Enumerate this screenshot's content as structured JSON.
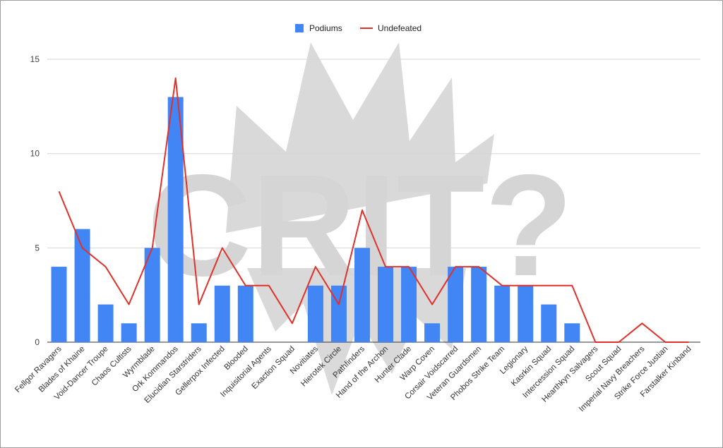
{
  "chart_data": {
    "type": "bar",
    "categories": [
      "Fellgor Ravagers",
      "Blades of Khaine",
      "Void-Dancer Troupe",
      "Chaos Cultists",
      "Wyrmblade",
      "Ork Kommandos",
      "Elucidian Starstriders",
      "Gellerpox Infected",
      "Blooded",
      "Inquisitorial Agents",
      "Exaction Squad",
      "Novitiates",
      "Hierotek Circle",
      "Pathfinders",
      "Hand of the Archon",
      "Hunter Clade",
      "Warp Coven",
      "Corsair Voidscarred",
      "Veteran Guardsmen",
      "Phobos Strike Team",
      "Legionary",
      "Kasrkin Squad",
      "Intercession Squad",
      "Hearthkyn Salvagers",
      "Scout Squad",
      "Imperial Navy Breachers",
      "Strike Force Justian",
      "Farstalker Kinband"
    ],
    "series": [
      {
        "name": "Podiums",
        "type": "bar",
        "color": "#4285f4",
        "values": [
          4,
          6,
          2,
          1,
          5,
          13,
          1,
          3,
          3,
          0,
          0,
          3,
          3,
          5,
          4,
          4,
          1,
          4,
          4,
          3,
          3,
          2,
          1,
          0,
          0,
          0,
          0,
          0
        ]
      },
      {
        "name": "Undefeated",
        "type": "line",
        "color": "#e0312a",
        "values": [
          8,
          5,
          4,
          2,
          5,
          14,
          2,
          5,
          3,
          3,
          1,
          4,
          2,
          7,
          4,
          4,
          2,
          4,
          4,
          3,
          3,
          3,
          3,
          0,
          0,
          1,
          0,
          0
        ]
      }
    ],
    "yticks": [
      0,
      5,
      10,
      15
    ],
    "ylim": [
      0,
      15.9
    ],
    "grid": true,
    "legend_position": "top",
    "title": "",
    "xlabel": "",
    "ylabel": ""
  },
  "watermark": {
    "text": "CRIT?"
  }
}
